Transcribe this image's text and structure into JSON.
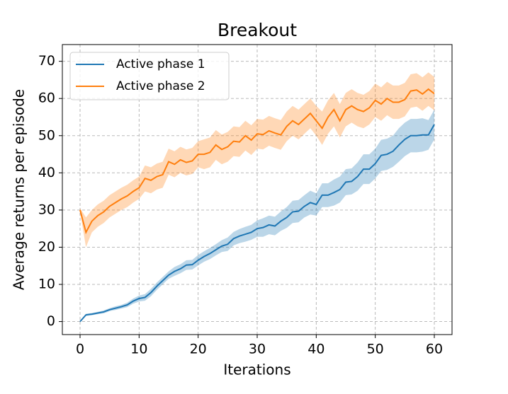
{
  "chart_data": {
    "type": "line",
    "title": "Breakout",
    "x_label": "Iterations",
    "y_label": "Average returns per episode",
    "x": [
      0,
      1,
      2,
      3,
      4,
      5,
      6,
      7,
      8,
      9,
      10,
      11,
      12,
      13,
      14,
      15,
      16,
      17,
      18,
      19,
      20,
      21,
      22,
      23,
      24,
      25,
      26,
      27,
      28,
      29,
      30,
      31,
      32,
      33,
      34,
      35,
      36,
      37,
      38,
      39,
      40,
      41,
      42,
      43,
      44,
      45,
      46,
      47,
      48,
      49,
      50,
      51,
      52,
      53,
      54,
      55,
      56,
      57,
      58,
      59,
      60
    ],
    "series": [
      {
        "name": "Active phase 1",
        "color": "#1f77b4",
        "values": [
          0,
          1.8,
          2,
          2.3,
          2.6,
          3.2,
          3.6,
          4,
          4.5,
          5.5,
          6.2,
          6.5,
          7.8,
          9.5,
          11,
          12.5,
          13.5,
          14.2,
          15.2,
          15.3,
          16.5,
          17.5,
          18.3,
          19.3,
          20.3,
          20.8,
          22.3,
          23,
          23.5,
          24,
          25,
          25.3,
          26,
          25.7,
          27,
          28,
          29.5,
          29.7,
          31,
          32,
          31.5,
          34,
          34,
          34.7,
          35.5,
          37.5,
          37.7,
          39,
          41,
          41,
          42.5,
          44.7,
          45,
          45.8,
          47.5,
          49,
          50,
          50,
          50.2,
          50.2,
          53
        ],
        "lower": [
          -0.2,
          1.5,
          1.7,
          2.0,
          2.2,
          2.8,
          3.1,
          3.5,
          3.9,
          4.8,
          5.4,
          5.6,
          6.8,
          8.5,
          10,
          11.5,
          12.3,
          13,
          13.9,
          14,
          15.1,
          16.1,
          16.8,
          17.8,
          18.7,
          19,
          20.5,
          21.1,
          21.5,
          22,
          22.8,
          22.8,
          23.5,
          23.2,
          24.4,
          25.2,
          26.5,
          26.7,
          28,
          28.8,
          28.5,
          30.8,
          30.8,
          31.2,
          32,
          34,
          34.2,
          35.2,
          37,
          37,
          38.5,
          40.5,
          40.8,
          41.6,
          43,
          44.5,
          45.5,
          45.5,
          45.7,
          46.2,
          49
        ],
        "upper": [
          0.2,
          2.1,
          2.3,
          2.6,
          3.0,
          3.6,
          4.1,
          4.5,
          5.1,
          6.2,
          7.0,
          7.4,
          8.8,
          10.5,
          12,
          13.5,
          14.7,
          15.4,
          16.5,
          16.6,
          17.9,
          18.9,
          19.8,
          20.8,
          21.9,
          22.6,
          24.1,
          24.9,
          25.5,
          26,
          27.2,
          27.8,
          28.5,
          28.2,
          29.6,
          30.8,
          32.5,
          32.7,
          34,
          35.2,
          34.5,
          37.2,
          37.2,
          38.2,
          39,
          41,
          41.2,
          42.8,
          45,
          45,
          46.5,
          48.9,
          49.2,
          50,
          52,
          53.5,
          54.5,
          54.5,
          54.7,
          54.2,
          57
        ]
      },
      {
        "name": "Active phase 2",
        "color": "#ff7f0e",
        "values": [
          30,
          24,
          27,
          28.5,
          29.5,
          31,
          32,
          33,
          33.8,
          35,
          36,
          38.5,
          38,
          39,
          39.5,
          43,
          42.3,
          43.5,
          42.8,
          43.2,
          45,
          45,
          45.5,
          47.5,
          46.3,
          47,
          48.5,
          48.3,
          50,
          48.8,
          50.5,
          50.3,
          51.3,
          50.7,
          50.2,
          52.5,
          54,
          53,
          54.5,
          56,
          54,
          52,
          55,
          57,
          54,
          57,
          58,
          57,
          56.5,
          57.5,
          59.5,
          58.5,
          60,
          59,
          59,
          59.7,
          62,
          62.3,
          61.2,
          62.5,
          61.3
        ],
        "lower": [
          29.5,
          20,
          24,
          25.5,
          26.5,
          28,
          29,
          30,
          30.8,
          32,
          33,
          35,
          34.5,
          35.5,
          36,
          39.5,
          38.8,
          40,
          39.3,
          39.7,
          41.5,
          41,
          41.5,
          43.5,
          42.3,
          43,
          44.5,
          44.3,
          46,
          44.8,
          46.5,
          46.3,
          47.3,
          46.7,
          46.2,
          48.5,
          50,
          49,
          50.5,
          52,
          50,
          47.5,
          50.5,
          52.5,
          49.5,
          52.5,
          53.5,
          52.5,
          52,
          53,
          55,
          54,
          55.5,
          54.5,
          54.5,
          55.2,
          57.5,
          57.8,
          56.7,
          58,
          56.8
        ],
        "upper": [
          30.5,
          28,
          30,
          31.5,
          32.5,
          34,
          35,
          36,
          36.8,
          38,
          39,
          42,
          41.5,
          42.5,
          43,
          46.5,
          45.8,
          47,
          46.3,
          46.7,
          48.5,
          49,
          49.5,
          51.5,
          50.3,
          51,
          52.5,
          52.3,
          54,
          52.8,
          54.5,
          54.3,
          55.3,
          54.7,
          54.2,
          56.5,
          58,
          57,
          58.5,
          60,
          58,
          56.5,
          59.5,
          61.5,
          58.5,
          61.5,
          62.5,
          61.5,
          61,
          62,
          64,
          63,
          64.5,
          63.5,
          63.5,
          64.2,
          66.5,
          66.8,
          65.7,
          67,
          65.8
        ]
      }
    ],
    "xlim": [
      -3,
      63
    ],
    "ylim": [
      -3.5,
      74.5
    ],
    "xticks": [
      0,
      10,
      20,
      30,
      40,
      50,
      60
    ],
    "yticks": [
      0,
      10,
      20,
      30,
      40,
      50,
      60,
      70
    ],
    "grid": true,
    "legend": "upper left"
  }
}
